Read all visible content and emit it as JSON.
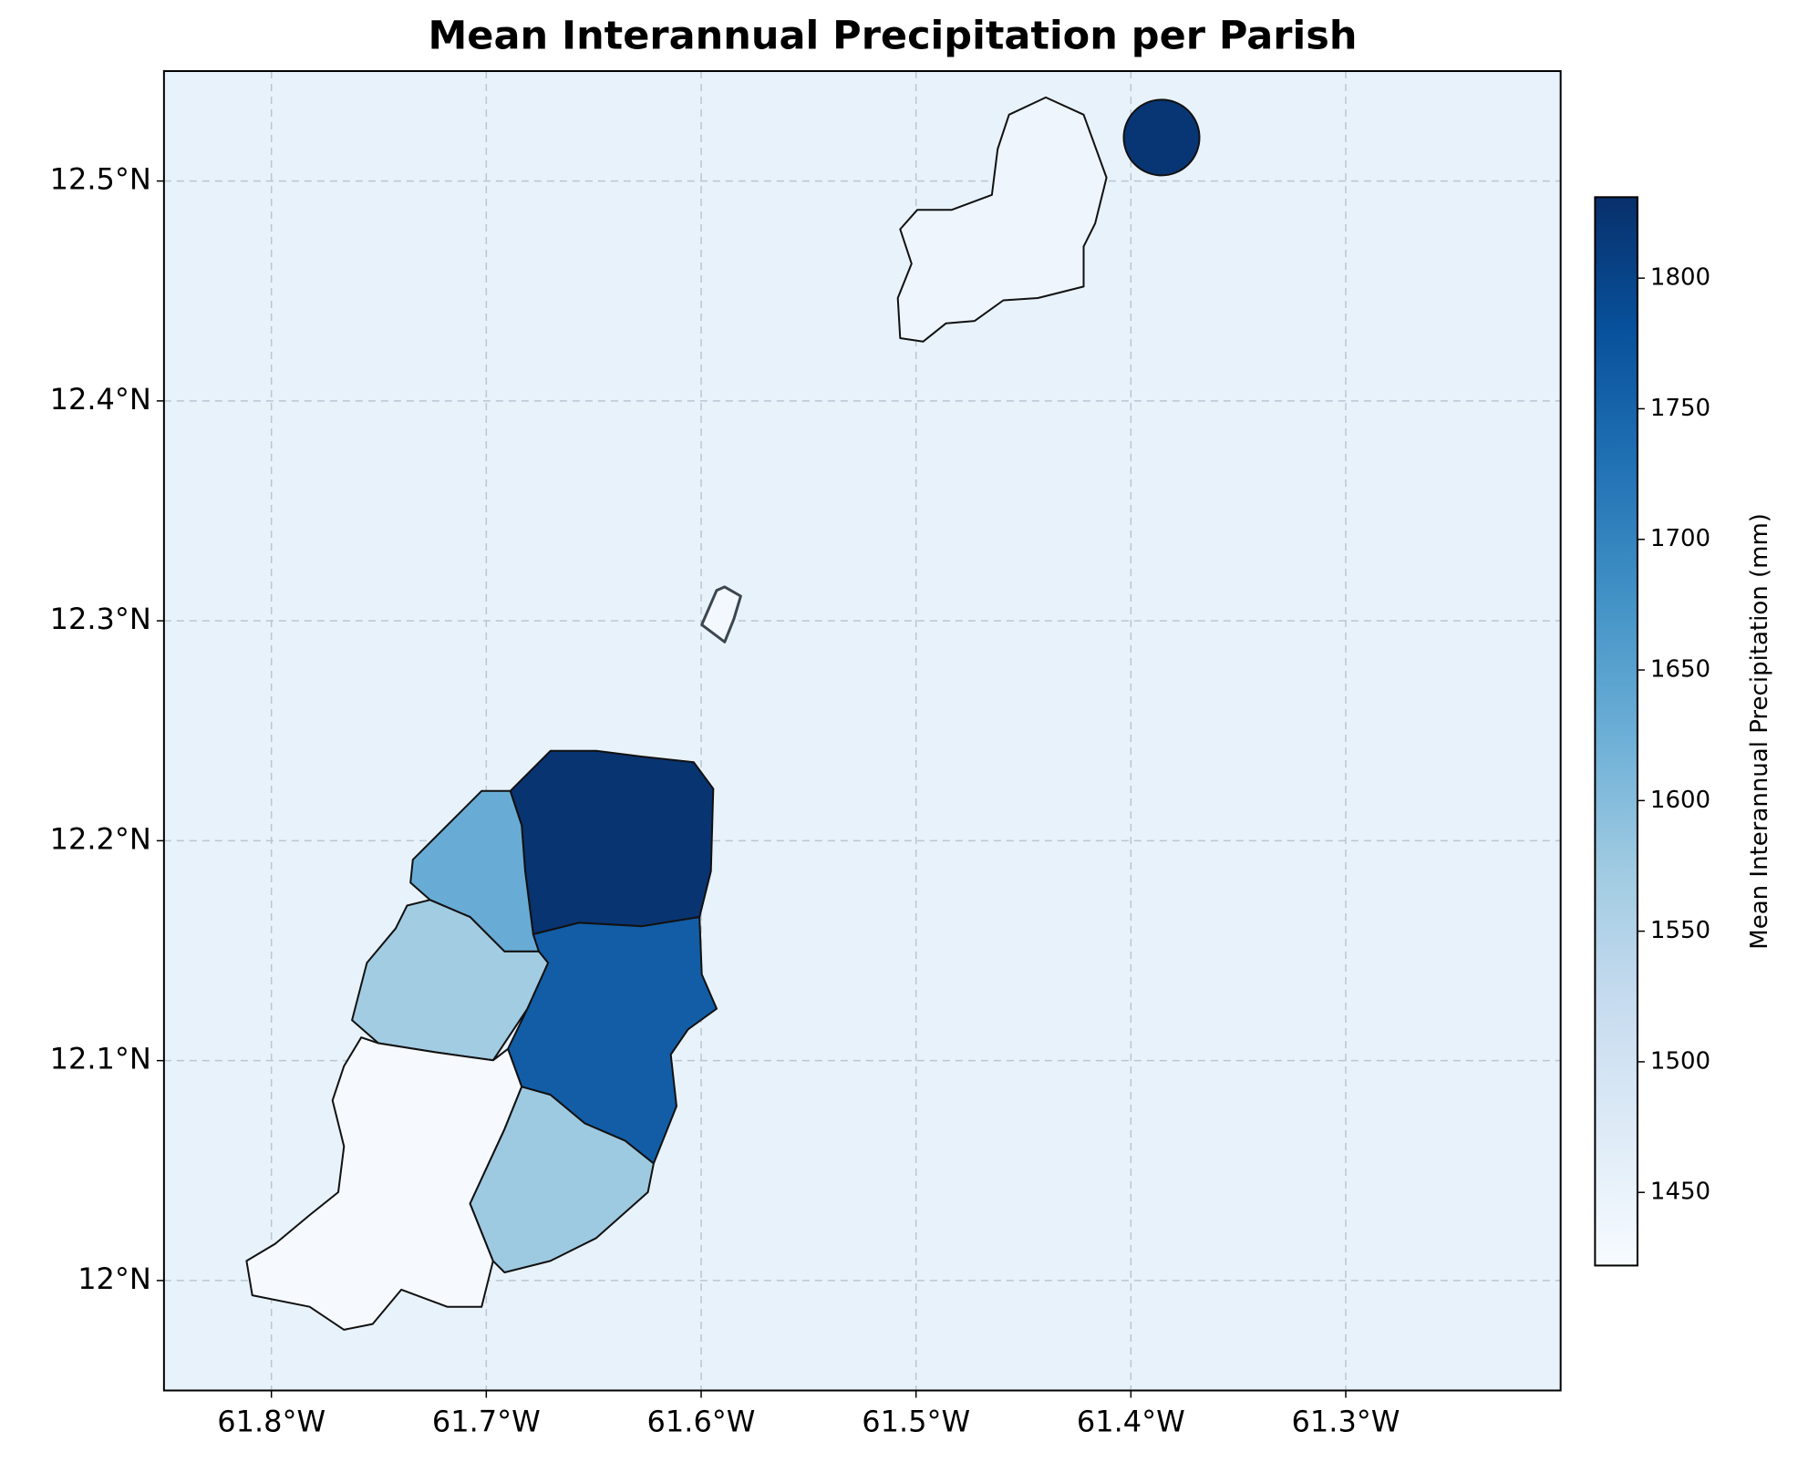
{
  "chart_data": {
    "type": "choropleth",
    "title": "Mean Interannual Precipitation per Parish",
    "colorbar_label": "Mean Interannual Precipitation (mm)",
    "colormap": "Blues",
    "values": [
      1440,
      1822,
      1432,
      1825,
      1630,
      1570,
      1760,
      1425,
      1575
    ],
    "xlim": [
      -61.85,
      -61.2
    ],
    "ylim": [
      11.95,
      12.55
    ],
    "xticks": [
      {
        "value": -61.8,
        "label": "61.8°W"
      },
      {
        "value": -61.7,
        "label": "61.7°W"
      },
      {
        "value": -61.6,
        "label": "61.6°W"
      },
      {
        "value": -61.5,
        "label": "61.5°W"
      },
      {
        "value": -61.4,
        "label": "61.4°W"
      },
      {
        "value": -61.3,
        "label": "61.3°W"
      }
    ],
    "yticks": [
      {
        "value": 12.0,
        "label": "12°N"
      },
      {
        "value": 12.1,
        "label": "12.1°N"
      },
      {
        "value": 12.2,
        "label": "12.2°N"
      },
      {
        "value": 12.3,
        "label": "12.3°N"
      },
      {
        "value": 12.4,
        "label": "12.4°N"
      },
      {
        "value": 12.5,
        "label": "12.5°N"
      }
    ],
    "clim": [
      1422,
      1831
    ],
    "cticks": [
      1450,
      1500,
      1550,
      1600,
      1650,
      1700,
      1750,
      1800
    ],
    "grid": true
  }
}
